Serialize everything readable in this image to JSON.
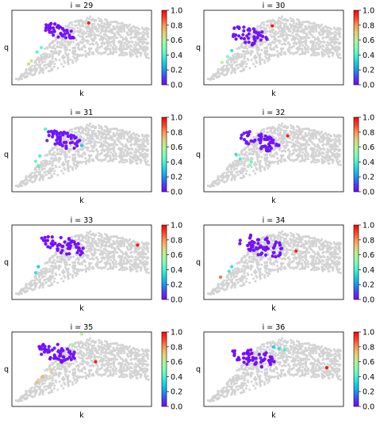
{
  "colormap": {
    "name": "rainbow",
    "stops": [
      "#8000ff",
      "#4a41fb",
      "#1996f3",
      "#1acee3",
      "#4df3ce",
      "#80ffb4",
      "#b3f396",
      "#e6ce74",
      "#ff964f",
      "#ff4128",
      "#ff0000"
    ]
  },
  "background_point_color": "#d3d3d3",
  "chart_data": [
    {
      "type": "scatter",
      "title": "i = 29",
      "xlabel": "k",
      "ylabel": "q",
      "colorbar": {
        "range": [
          0,
          1
        ],
        "ticks": [
          "0.0",
          "0.2",
          "0.4",
          "0.6",
          "0.8",
          "1.0"
        ]
      },
      "highlight": {
        "clusters": [
          {
            "x": 0.34,
            "y": 0.72,
            "r": 0.11,
            "n": 45,
            "v": 0.02
          }
        ],
        "extras": [
          {
            "x": 0.18,
            "y": 0.44,
            "v": 0.42
          },
          {
            "x": 0.21,
            "y": 0.5,
            "v": 0.45
          },
          {
            "x": 0.14,
            "y": 0.32,
            "v": 0.62
          },
          {
            "x": 0.12,
            "y": 0.28,
            "v": 0.68
          },
          {
            "x": 0.55,
            "y": 0.83,
            "v": 0.95
          }
        ]
      }
    },
    {
      "type": "scatter",
      "title": "i = 30",
      "xlabel": "k",
      "ylabel": "q",
      "colorbar": {
        "range": [
          0,
          1
        ],
        "ticks": [
          "0.0",
          "0.2",
          "0.4",
          "0.6",
          "0.8",
          "1.0"
        ]
      },
      "highlight": {
        "clusters": [
          {
            "x": 0.32,
            "y": 0.66,
            "r": 0.13,
            "n": 50,
            "v": 0.03
          }
        ],
        "extras": [
          {
            "x": 0.2,
            "y": 0.46,
            "v": 0.35
          },
          {
            "x": 0.17,
            "y": 0.38,
            "v": 0.48
          },
          {
            "x": 0.13,
            "y": 0.3,
            "v": 0.6
          },
          {
            "x": 0.49,
            "y": 0.79,
            "v": 0.98
          }
        ]
      }
    },
    {
      "type": "scatter",
      "title": "i = 31",
      "xlabel": "k",
      "ylabel": "q",
      "colorbar": {
        "range": [
          0,
          1
        ],
        "ticks": [
          "0.0",
          "0.2",
          "0.4",
          "0.6",
          "0.8",
          "1.0"
        ]
      },
      "highlight": {
        "clusters": [
          {
            "x": 0.36,
            "y": 0.7,
            "r": 0.12,
            "n": 50,
            "v": 0.03
          }
        ],
        "extras": [
          {
            "x": 0.2,
            "y": 0.48,
            "v": 0.4
          },
          {
            "x": 0.17,
            "y": 0.41,
            "v": 0.45
          },
          {
            "x": 0.19,
            "y": 0.34,
            "v": 0.42
          },
          {
            "x": 0.24,
            "y": 0.84,
            "v": 0.42
          },
          {
            "x": 0.5,
            "y": 0.62,
            "v": 0.3
          }
        ]
      }
    },
    {
      "type": "scatter",
      "title": "i = 32",
      "xlabel": "k",
      "ylabel": "q",
      "colorbar": {
        "range": [
          0,
          1
        ],
        "ticks": [
          "0.0",
          "0.2",
          "0.4",
          "0.6",
          "0.8",
          "1.0"
        ]
      },
      "highlight": {
        "clusters": [
          {
            "x": 0.38,
            "y": 0.68,
            "r": 0.14,
            "n": 55,
            "v": 0.03
          }
        ],
        "extras": [
          {
            "x": 0.23,
            "y": 0.5,
            "v": 0.35
          },
          {
            "x": 0.26,
            "y": 0.44,
            "v": 0.38
          },
          {
            "x": 0.34,
            "y": 0.4,
            "v": 0.45
          },
          {
            "x": 0.33,
            "y": 0.36,
            "v": 0.5
          },
          {
            "x": 0.6,
            "y": 0.75,
            "v": 0.95
          }
        ]
      }
    },
    {
      "type": "scatter",
      "title": "i = 33",
      "xlabel": "k",
      "ylabel": "q",
      "colorbar": {
        "range": [
          0,
          1
        ],
        "ticks": [
          "0.0",
          "0.2",
          "0.4",
          "0.6",
          "0.8",
          "1.0"
        ]
      },
      "highlight": {
        "clusters": [
          {
            "x": 0.36,
            "y": 0.72,
            "r": 0.14,
            "n": 55,
            "v": 0.02
          }
        ],
        "extras": [
          {
            "x": 0.19,
            "y": 0.44,
            "v": 0.3
          },
          {
            "x": 0.17,
            "y": 0.36,
            "v": 0.35
          },
          {
            "x": 0.9,
            "y": 0.73,
            "v": 0.97
          }
        ]
      }
    },
    {
      "type": "scatter",
      "title": "i = 34",
      "xlabel": "k",
      "ylabel": "q",
      "colorbar": {
        "range": [
          0,
          1
        ],
        "ticks": [
          "0.0",
          "0.2",
          "0.4",
          "0.6",
          "0.8",
          "1.0"
        ]
      },
      "highlight": {
        "clusters": [
          {
            "x": 0.42,
            "y": 0.72,
            "r": 0.15,
            "n": 60,
            "v": 0.03
          }
        ],
        "extras": [
          {
            "x": 0.2,
            "y": 0.44,
            "v": 0.35
          },
          {
            "x": 0.18,
            "y": 0.38,
            "v": 0.38
          },
          {
            "x": 0.12,
            "y": 0.3,
            "v": 0.85
          },
          {
            "x": 0.66,
            "y": 0.65,
            "v": 0.95
          }
        ]
      }
    },
    {
      "type": "scatter",
      "title": "i = 35",
      "xlabel": "k",
      "ylabel": "q",
      "colorbar": {
        "range": [
          0,
          1
        ],
        "ticks": [
          "0.0",
          "0.2",
          "0.4",
          "0.6",
          "0.8",
          "1.0"
        ]
      },
      "highlight": {
        "clusters": [
          {
            "x": 0.32,
            "y": 0.72,
            "r": 0.13,
            "n": 55,
            "v": 0.03
          }
        ],
        "extras": [
          {
            "x": 0.5,
            "y": 0.97,
            "v": 0.62
          },
          {
            "x": 0.44,
            "y": 0.82,
            "v": 0.55
          },
          {
            "x": 0.33,
            "y": 0.55,
            "v": 0.6
          },
          {
            "x": 0.28,
            "y": 0.47,
            "v": 0.7
          },
          {
            "x": 0.22,
            "y": 0.4,
            "v": 0.75
          },
          {
            "x": 0.18,
            "y": 0.32,
            "v": 0.72
          },
          {
            "x": 0.6,
            "y": 0.6,
            "v": 0.96
          }
        ]
      }
    },
    {
      "type": "scatter",
      "title": "i = 36",
      "xlabel": "k",
      "ylabel": "q",
      "colorbar": {
        "range": [
          0,
          1
        ],
        "ticks": [
          "0.0",
          "0.2",
          "0.4",
          "0.6",
          "0.8",
          "1.0"
        ]
      },
      "highlight": {
        "clusters": [
          {
            "x": 0.36,
            "y": 0.66,
            "r": 0.14,
            "n": 55,
            "v": 0.02
          }
        ],
        "extras": [
          {
            "x": 0.5,
            "y": 0.8,
            "v": 0.3
          },
          {
            "x": 0.54,
            "y": 0.78,
            "v": 0.35
          },
          {
            "x": 0.58,
            "y": 0.76,
            "v": 0.4
          },
          {
            "x": 0.88,
            "y": 0.52,
            "v": 0.97
          }
        ]
      }
    }
  ]
}
